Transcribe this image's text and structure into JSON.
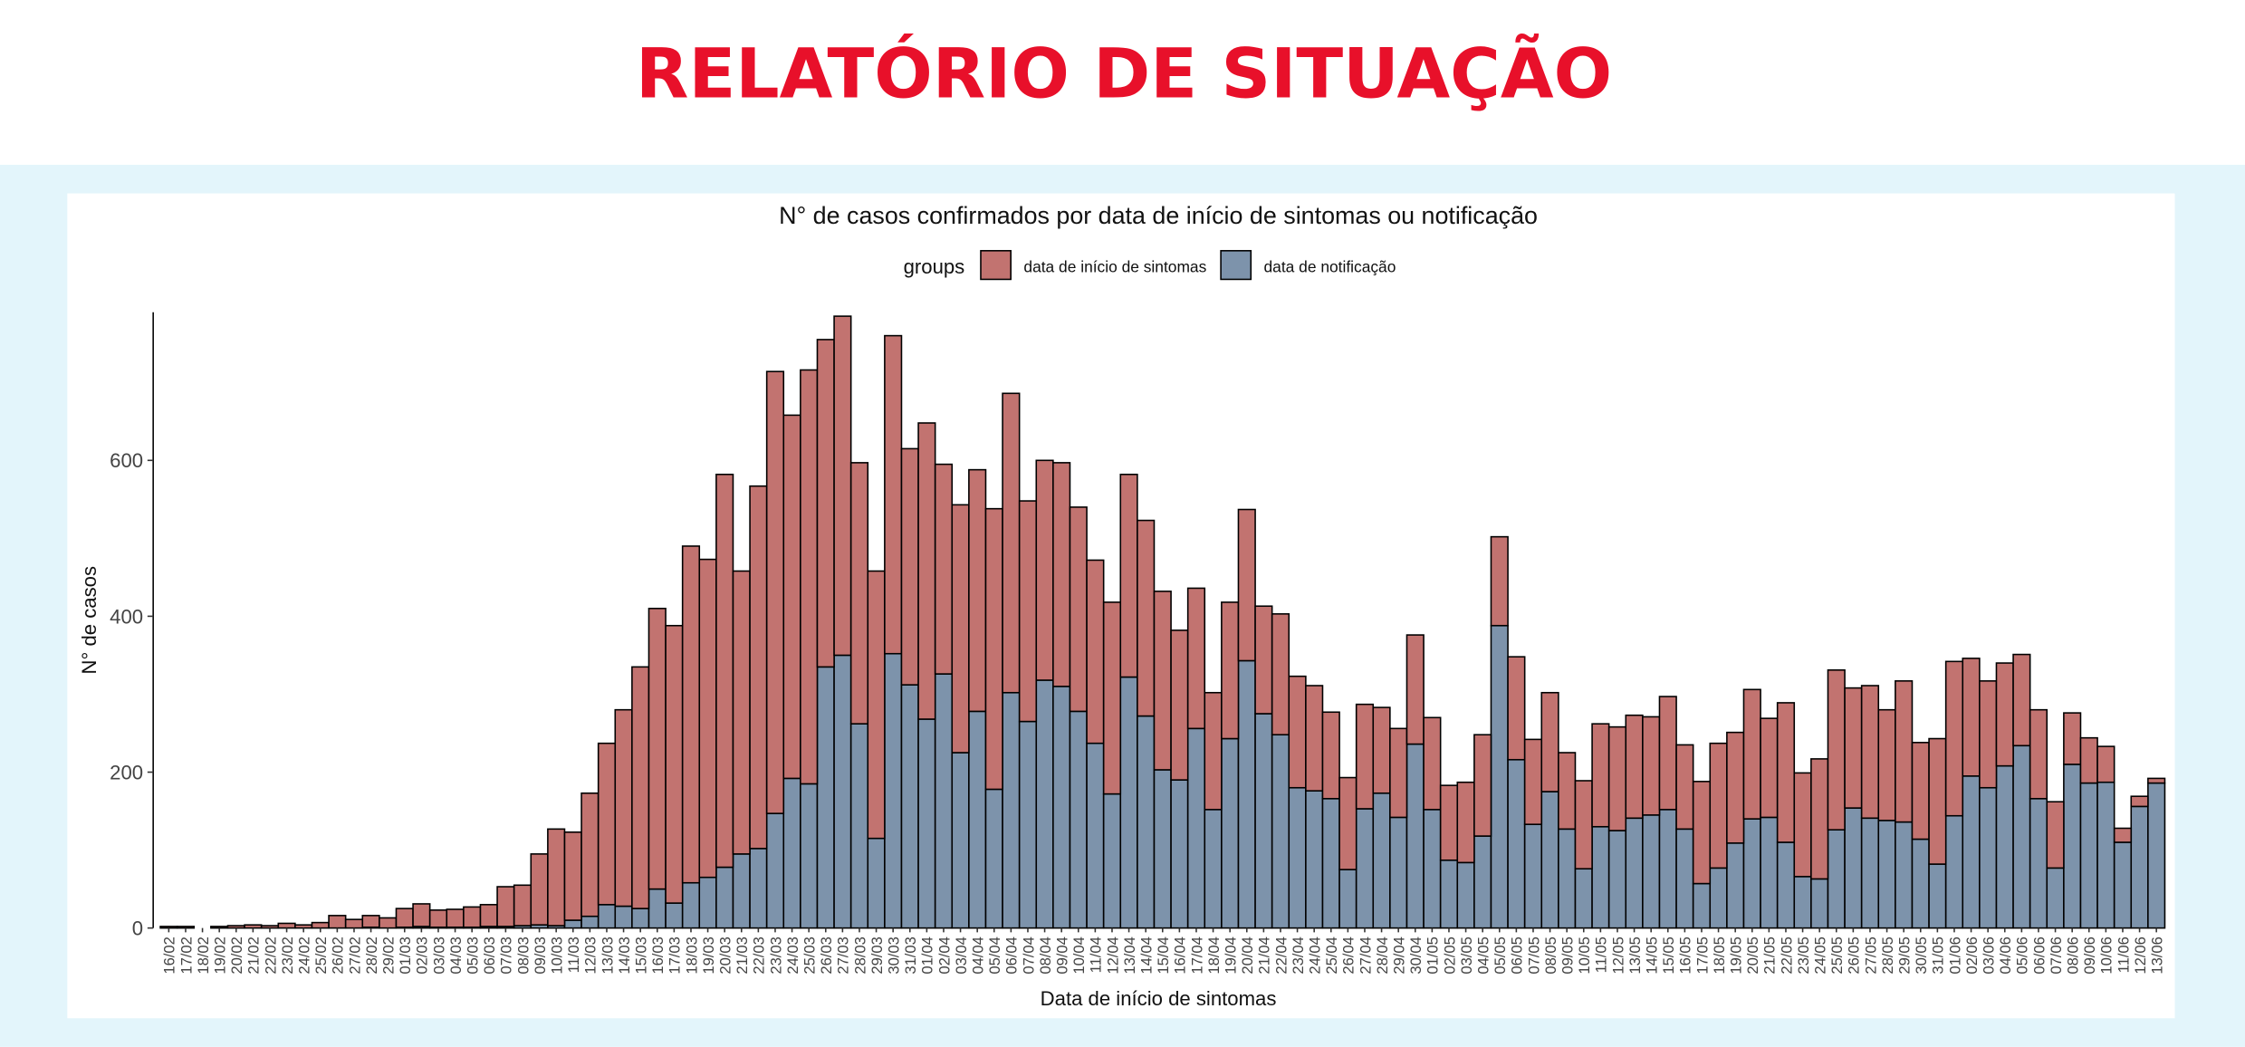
{
  "page_title": "RELATÓRIO DE SITUAÇÃO",
  "chart_data": {
    "type": "bar",
    "stacked": true,
    "title": "N° de casos confirmados por data de início de sintomas ou notificação",
    "legend_title": "groups",
    "legend": "top",
    "x_label": "Data de início de sintomas",
    "y_label": "N° de casos",
    "ylim": [
      0,
      790
    ],
    "yticks": [
      0,
      200,
      400,
      600
    ],
    "grid": false,
    "categories": [
      "16/02",
      "17/02",
      "18/02",
      "19/02",
      "20/02",
      "21/02",
      "22/02",
      "23/02",
      "24/02",
      "25/02",
      "26/02",
      "27/02",
      "28/02",
      "29/02",
      "01/03",
      "02/03",
      "03/03",
      "04/03",
      "05/03",
      "06/03",
      "07/03",
      "08/03",
      "09/03",
      "10/03",
      "11/03",
      "12/03",
      "13/03",
      "14/03",
      "15/03",
      "16/03",
      "17/03",
      "18/03",
      "19/03",
      "20/03",
      "21/03",
      "22/03",
      "23/03",
      "24/03",
      "25/03",
      "26/03",
      "27/03",
      "28/03",
      "29/03",
      "30/03",
      "31/03",
      "01/04",
      "02/04",
      "03/04",
      "04/04",
      "05/04",
      "06/04",
      "07/04",
      "08/04",
      "09/04",
      "10/04",
      "11/04",
      "12/04",
      "13/04",
      "14/04",
      "15/04",
      "16/04",
      "17/04",
      "18/04",
      "19/04",
      "20/04",
      "21/04",
      "22/04",
      "23/04",
      "24/04",
      "25/04",
      "26/04",
      "27/04",
      "28/04",
      "29/04",
      "30/04",
      "01/05",
      "02/05",
      "03/05",
      "04/05",
      "05/05",
      "06/05",
      "07/05",
      "08/05",
      "09/05",
      "10/05",
      "11/05",
      "12/05",
      "13/05",
      "14/05",
      "15/05",
      "16/05",
      "17/05",
      "18/05",
      "19/05",
      "20/05",
      "21/05",
      "22/05",
      "23/05",
      "24/05",
      "25/05",
      "26/05",
      "27/05",
      "28/05",
      "29/05",
      "30/05",
      "31/05",
      "01/06",
      "02/06",
      "03/06",
      "04/06",
      "05/06",
      "06/06",
      "07/06",
      "08/06",
      "09/06",
      "10/06",
      "11/06",
      "12/06",
      "13/06"
    ],
    "series": [
      {
        "name": "data de início de sintomas",
        "color": "#c27370",
        "values": [
          2,
          2,
          0,
          2,
          3,
          4,
          3,
          6,
          4,
          7,
          16,
          11,
          15,
          13,
          24,
          29,
          22,
          23,
          26,
          28,
          51,
          52,
          91,
          124,
          113,
          158,
          207,
          252,
          310,
          360,
          356,
          432,
          408,
          504,
          363,
          465,
          567,
          466,
          531,
          420,
          435,
          335,
          343,
          408,
          303,
          380,
          269,
          318,
          310,
          360,
          384,
          283,
          282,
          287,
          262,
          235,
          246,
          260,
          251,
          229,
          192,
          180,
          150,
          175,
          194,
          138,
          155,
          143,
          135,
          111,
          118,
          134,
          110,
          114,
          140,
          118,
          96,
          103,
          130,
          114,
          132,
          109,
          127,
          98,
          113,
          132,
          133,
          132,
          126,
          145,
          108,
          131,
          160,
          142,
          166,
          127,
          179,
          133,
          154,
          205,
          154,
          170,
          142,
          181,
          124,
          161,
          198,
          151,
          137,
          132,
          117,
          114,
          85,
          66,
          58,
          46,
          18,
          13,
          6
        ]
      },
      {
        "name": "data de notificação",
        "color": "#7d93ab",
        "values": [
          0,
          0,
          0,
          0,
          0,
          0,
          0,
          0,
          0,
          0,
          0,
          0,
          1,
          0,
          1,
          2,
          1,
          1,
          1,
          2,
          2,
          3,
          4,
          3,
          10,
          15,
          30,
          28,
          25,
          50,
          32,
          58,
          65,
          78,
          95,
          102,
          147,
          192,
          185,
          335,
          350,
          262,
          115,
          352,
          312,
          268,
          326,
          225,
          278,
          178,
          302,
          265,
          318,
          310,
          278,
          237,
          172,
          322,
          272,
          203,
          190,
          256,
          152,
          243,
          343,
          275,
          248,
          180,
          176,
          166,
          75,
          153,
          173,
          142,
          236,
          152,
          87,
          84,
          118,
          388,
          216,
          133,
          175,
          127,
          76,
          130,
          125,
          141,
          145,
          152,
          127,
          57,
          77,
          109,
          140,
          142,
          110,
          66,
          63,
          126,
          154,
          141,
          138,
          136,
          114,
          82,
          144,
          195,
          180,
          208,
          234,
          166,
          77,
          210,
          186,
          187,
          110,
          156,
          186
        ]
      }
    ]
  }
}
